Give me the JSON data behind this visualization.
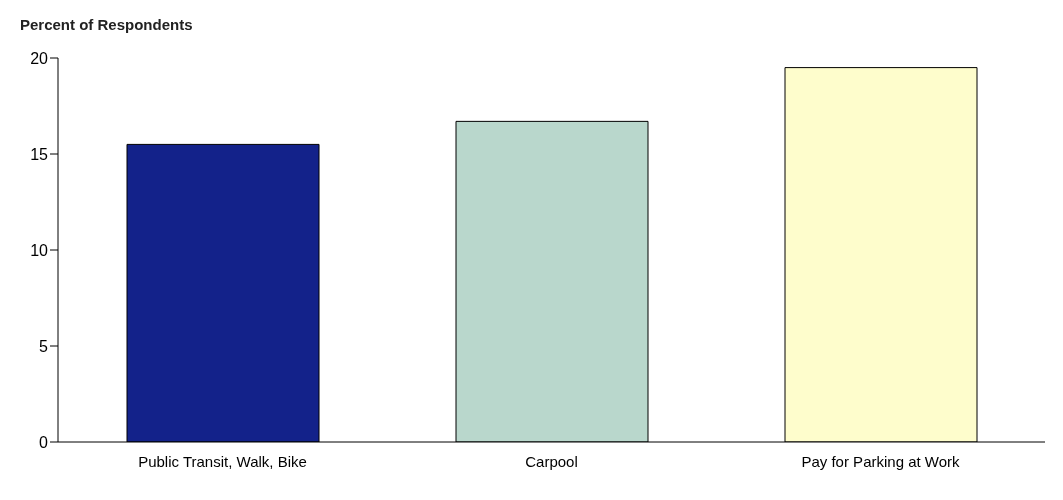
{
  "chart_data": {
    "type": "bar",
    "ylabel": "Percent of Respondents",
    "categories": [
      "Public Transit, Walk, Bike",
      "Carpool",
      "Pay for Parking at Work"
    ],
    "values": [
      15.5,
      16.7,
      19.5
    ],
    "colors": [
      "#13228a",
      "#b9d7cc",
      "#fefdcc"
    ],
    "ylim": [
      0,
      20
    ],
    "yticks": [
      0,
      5,
      10,
      15,
      20
    ],
    "grid": false,
    "legend": false
  }
}
